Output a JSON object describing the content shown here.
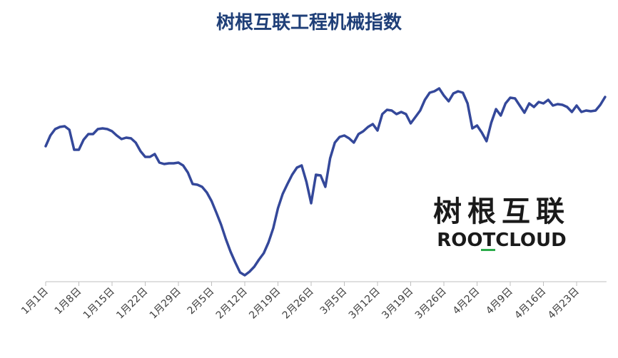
{
  "chart_data": {
    "type": "line",
    "title": "树根互联工程机械指数",
    "logo": {
      "name": "树根互联",
      "brand": "ROOTCLOUD"
    },
    "categories": [
      "1月1日",
      null,
      null,
      null,
      null,
      null,
      null,
      "1月8日",
      null,
      null,
      null,
      null,
      null,
      null,
      "1月15日",
      null,
      null,
      null,
      null,
      null,
      null,
      "1月22日",
      null,
      null,
      null,
      null,
      null,
      null,
      "1月29日",
      null,
      null,
      null,
      null,
      null,
      null,
      "2月5日",
      null,
      null,
      null,
      null,
      null,
      null,
      "2月12日",
      null,
      null,
      null,
      null,
      null,
      null,
      "2月19日",
      null,
      null,
      null,
      null,
      null,
      null,
      "2月26日",
      null,
      null,
      null,
      null,
      null,
      null,
      "3月5日",
      null,
      null,
      null,
      null,
      null,
      null,
      "3月12日",
      null,
      null,
      null,
      null,
      null,
      null,
      "3月19日",
      null,
      null,
      null,
      null,
      null,
      null,
      "3月26日",
      null,
      null,
      null,
      null,
      null,
      null,
      "4月2日",
      null,
      null,
      null,
      null,
      null,
      null,
      "4月9日",
      null,
      null,
      null,
      null,
      null,
      null,
      "4月16日",
      null,
      null,
      null,
      null,
      null,
      null,
      "4月23日",
      null,
      null,
      null,
      null,
      null,
      null
    ],
    "values": [
      195,
      210,
      219,
      222,
      223,
      218,
      190,
      190,
      204,
      212,
      212,
      219,
      220,
      219,
      216,
      210,
      205,
      207,
      206,
      200,
      188,
      180,
      180,
      184,
      172,
      170,
      171,
      171,
      172,
      168,
      158,
      142,
      141,
      138,
      130,
      118,
      102,
      85,
      65,
      47,
      32,
      18,
      14,
      19,
      26,
      36,
      45,
      60,
      80,
      108,
      128,
      142,
      155,
      165,
      168,
      145,
      115,
      155,
      154,
      138,
      178,
      200,
      208,
      210,
      206,
      200,
      212,
      216,
      222,
      226,
      217,
      240,
      246,
      245,
      240,
      243,
      240,
      227,
      236,
      245,
      260,
      270,
      272,
      276,
      266,
      258,
      269,
      272,
      270,
      255,
      220,
      224,
      214,
      202,
      228,
      247,
      238,
      255,
      263,
      262,
      252,
      242,
      255,
      250,
      257,
      255,
      260,
      252,
      254,
      253,
      250,
      243,
      252,
      243,
      245,
      244,
      245,
      253,
      264
    ],
    "color": "#34489a",
    "ylim": [
      0,
      300
    ]
  }
}
